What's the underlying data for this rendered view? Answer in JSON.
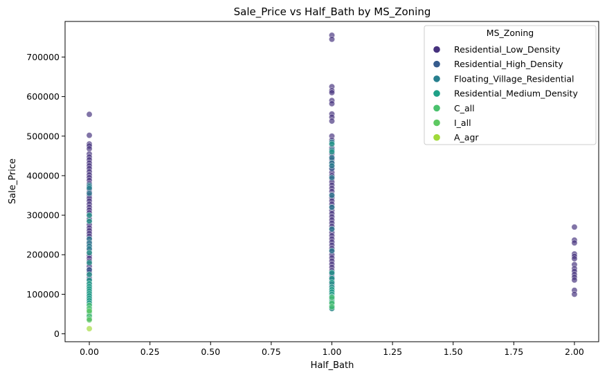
{
  "chart_data": {
    "type": "scatter",
    "title": "Sale_Price vs Half_Bath by MS_Zoning",
    "xlabel": "Half_Bath",
    "ylabel": "Sale_Price",
    "xlim": [
      -0.1,
      2.1
    ],
    "ylim": [
      -20000,
      790000
    ],
    "xticks": [
      0.0,
      0.25,
      0.5,
      0.75,
      1.0,
      1.25,
      1.5,
      1.75,
      2.0
    ],
    "xtick_labels": [
      "0.00",
      "0.25",
      "0.50",
      "0.75",
      "1.00",
      "1.25",
      "1.50",
      "1.75",
      "2.00"
    ],
    "yticks": [
      0,
      100000,
      200000,
      300000,
      400000,
      500000,
      600000,
      700000
    ],
    "ytick_labels": [
      "0",
      "100000",
      "200000",
      "300000",
      "400000",
      "500000",
      "600000",
      "700000"
    ],
    "grid": false,
    "legend": {
      "title": "MS_Zoning",
      "placement": "top-right"
    },
    "series": [
      {
        "name": "Residential_Low_Density",
        "color": "#46327e",
        "points": [
          [
            0,
            555000
          ],
          [
            0,
            502000
          ],
          [
            0,
            480000
          ],
          [
            0,
            475000
          ],
          [
            0,
            468000
          ],
          [
            0,
            455000
          ],
          [
            0,
            447000
          ],
          [
            0,
            440000
          ],
          [
            0,
            432000
          ],
          [
            0,
            425000
          ],
          [
            0,
            418000
          ],
          [
            0,
            410000
          ],
          [
            0,
            402000
          ],
          [
            0,
            395000
          ],
          [
            0,
            388000
          ],
          [
            0,
            380000
          ],
          [
            0,
            372000
          ],
          [
            0,
            365000
          ],
          [
            0,
            358000
          ],
          [
            0,
            350000
          ],
          [
            0,
            343000
          ],
          [
            0,
            336000
          ],
          [
            0,
            328000
          ],
          [
            0,
            320000
          ],
          [
            0,
            313000
          ],
          [
            0,
            306000
          ],
          [
            0,
            298000
          ],
          [
            0,
            290000
          ],
          [
            0,
            283000
          ],
          [
            0,
            276000
          ],
          [
            0,
            268000
          ],
          [
            0,
            261000
          ],
          [
            0,
            254000
          ],
          [
            0,
            247000
          ],
          [
            0,
            240000
          ],
          [
            0,
            233000
          ],
          [
            0,
            226000
          ],
          [
            0,
            219000
          ],
          [
            0,
            212000
          ],
          [
            0,
            205000
          ],
          [
            0,
            198000
          ],
          [
            0,
            191000
          ],
          [
            0,
            184000
          ],
          [
            0,
            177000
          ],
          [
            0,
            170000
          ],
          [
            0,
            163000
          ],
          [
            0,
            156000
          ],
          [
            0,
            149000
          ],
          [
            0,
            142000
          ],
          [
            0,
            135000
          ],
          [
            0,
            128000
          ],
          [
            0,
            120000
          ],
          [
            0,
            112000
          ],
          [
            0,
            105000
          ],
          [
            0,
            98000
          ],
          [
            0,
            90000
          ],
          [
            0,
            83000
          ],
          [
            0,
            76000
          ],
          [
            0,
            68000
          ],
          [
            0,
            60000
          ],
          [
            0,
            52000
          ],
          [
            0,
            45000
          ],
          [
            0,
            38000
          ],
          [
            1,
            755000
          ],
          [
            1,
            745000
          ],
          [
            1,
            625000
          ],
          [
            1,
            615000
          ],
          [
            1,
            610000
          ],
          [
            1,
            590000
          ],
          [
            1,
            582000
          ],
          [
            1,
            556000
          ],
          [
            1,
            548000
          ],
          [
            1,
            538000
          ],
          [
            1,
            500000
          ],
          [
            1,
            490000
          ],
          [
            1,
            480000
          ],
          [
            1,
            470000
          ],
          [
            1,
            462000
          ],
          [
            1,
            455000
          ],
          [
            1,
            447000
          ],
          [
            1,
            440000
          ],
          [
            1,
            432000
          ],
          [
            1,
            424000
          ],
          [
            1,
            416000
          ],
          [
            1,
            408000
          ],
          [
            1,
            400000
          ],
          [
            1,
            392000
          ],
          [
            1,
            384000
          ],
          [
            1,
            376000
          ],
          [
            1,
            368000
          ],
          [
            1,
            360000
          ],
          [
            1,
            352000
          ],
          [
            1,
            344000
          ],
          [
            1,
            336000
          ],
          [
            1,
            328000
          ],
          [
            1,
            320000
          ],
          [
            1,
            312000
          ],
          [
            1,
            304000
          ],
          [
            1,
            296000
          ],
          [
            1,
            288000
          ],
          [
            1,
            280000
          ],
          [
            1,
            272000
          ],
          [
            1,
            264000
          ],
          [
            1,
            256000
          ],
          [
            1,
            248000
          ],
          [
            1,
            240000
          ],
          [
            1,
            232000
          ],
          [
            1,
            224000
          ],
          [
            1,
            216000
          ],
          [
            1,
            208000
          ],
          [
            1,
            200000
          ],
          [
            1,
            192000
          ],
          [
            1,
            184000
          ],
          [
            1,
            176000
          ],
          [
            1,
            168000
          ],
          [
            1,
            160000
          ],
          [
            1,
            152000
          ],
          [
            1,
            144000
          ],
          [
            1,
            136000
          ],
          [
            1,
            128000
          ],
          [
            1,
            120000
          ],
          [
            1,
            112000
          ],
          [
            1,
            104000
          ],
          [
            1,
            96000
          ],
          [
            1,
            88000
          ],
          [
            1,
            80000
          ],
          [
            1,
            72000
          ],
          [
            1,
            64000
          ],
          [
            2,
            270000
          ],
          [
            2,
            237000
          ],
          [
            2,
            230000
          ],
          [
            2,
            202000
          ],
          [
            2,
            196000
          ],
          [
            2,
            190000
          ],
          [
            2,
            175000
          ],
          [
            2,
            165000
          ],
          [
            2,
            158000
          ],
          [
            2,
            150000
          ],
          [
            2,
            143000
          ],
          [
            2,
            136000
          ],
          [
            2,
            110000
          ],
          [
            2,
            100000
          ]
        ]
      },
      {
        "name": "Residential_High_Density",
        "color": "#365c8d",
        "points": [
          [
            0,
            162000
          ],
          [
            0,
            138000
          ],
          [
            0,
            125000
          ],
          [
            0,
            118000
          ],
          [
            0,
            112000
          ],
          [
            0,
            95000
          ],
          [
            0,
            88000
          ],
          [
            1,
            418000
          ],
          [
            1,
            152000
          ],
          [
            1,
            140000
          ],
          [
            1,
            125000
          ],
          [
            1,
            110000
          ]
        ]
      },
      {
        "name": "Floating_Village_Residential",
        "color": "#277f8e",
        "points": [
          [
            0,
            376000
          ],
          [
            0,
            372000
          ],
          [
            0,
            368000
          ],
          [
            0,
            355000
          ],
          [
            0,
            240000
          ],
          [
            0,
            230000
          ],
          [
            0,
            222000
          ],
          [
            0,
            215000
          ],
          [
            1,
            485000
          ],
          [
            1,
            465000
          ],
          [
            1,
            445000
          ],
          [
            1,
            432000
          ],
          [
            1,
            425000
          ],
          [
            1,
            395000
          ],
          [
            1,
            350000
          ],
          [
            1,
            320000
          ],
          [
            1,
            265000
          ],
          [
            1,
            210000
          ]
        ]
      },
      {
        "name": "Residential_Medium_Density",
        "color": "#1fa187",
        "points": [
          [
            0,
            300000
          ],
          [
            0,
            285000
          ],
          [
            0,
            205000
          ],
          [
            0,
            180000
          ],
          [
            0,
            150000
          ],
          [
            0,
            135000
          ],
          [
            0,
            127000
          ],
          [
            0,
            120000
          ],
          [
            0,
            114000
          ],
          [
            0,
            108000
          ],
          [
            0,
            102000
          ],
          [
            0,
            96000
          ],
          [
            0,
            90000
          ],
          [
            0,
            84000
          ],
          [
            0,
            78000
          ],
          [
            0,
            72000
          ],
          [
            0,
            66000
          ],
          [
            0,
            60000
          ],
          [
            0,
            54000
          ],
          [
            0,
            48000
          ],
          [
            0,
            42000
          ],
          [
            1,
            480000
          ],
          [
            1,
            460000
          ],
          [
            1,
            155000
          ],
          [
            1,
            140000
          ],
          [
            1,
            130000
          ],
          [
            1,
            118000
          ],
          [
            1,
            112000
          ],
          [
            1,
            106000
          ],
          [
            1,
            100000
          ],
          [
            1,
            94000
          ],
          [
            1,
            88000
          ],
          [
            1,
            82000
          ],
          [
            1,
            76000
          ],
          [
            1,
            70000
          ],
          [
            1,
            64000
          ]
        ]
      },
      {
        "name": "C_all",
        "color": "#4ac16d",
        "points": [
          [
            0,
            72000
          ],
          [
            0,
            64000
          ],
          [
            0,
            55000
          ],
          [
            0,
            45000
          ],
          [
            0,
            38000
          ],
          [
            1,
            92000
          ],
          [
            1,
            78000
          ],
          [
            1,
            68000
          ]
        ]
      },
      {
        "name": "I_all",
        "color": "#5ec962",
        "points": [
          [
            0,
            58000
          ],
          [
            0,
            35000
          ]
        ]
      },
      {
        "name": "A_agr",
        "color": "#a0da39",
        "points": [
          [
            0,
            13000
          ]
        ]
      }
    ]
  }
}
